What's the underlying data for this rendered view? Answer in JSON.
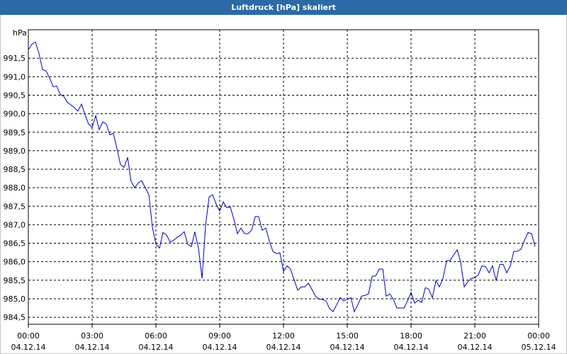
{
  "chart_data": {
    "type": "line",
    "title": "Luftdruck [hPa] skaliert",
    "y_label": "hPa",
    "color": "#0000b8",
    "grid": true,
    "xlim": [
      0,
      24
    ],
    "xticks": [
      {
        "value": 0,
        "label": "00:00",
        "date": "04.12.14"
      },
      {
        "value": 3,
        "label": "03:00",
        "date": "04.12.14"
      },
      {
        "value": 6,
        "label": "06:00",
        "date": "04.12.14"
      },
      {
        "value": 9,
        "label": "09:00",
        "date": "04.12.14"
      },
      {
        "value": 12,
        "label": "12:00",
        "date": "04.12.14"
      },
      {
        "value": 15,
        "label": "15:00",
        "date": "04.12.14"
      },
      {
        "value": 18,
        "label": "18:00",
        "date": "04.12.14"
      },
      {
        "value": 21,
        "label": "21:00",
        "date": "04.12.14"
      },
      {
        "value": 24,
        "label": "00:00",
        "date": "05.12.14"
      }
    ],
    "ylim": [
      984.31,
      992.27
    ],
    "yticks": [
      {
        "value": 984.5,
        "label": "984,5"
      },
      {
        "value": 985,
        "label": "985,0"
      },
      {
        "value": 985.5,
        "label": "985,5"
      },
      {
        "value": 986,
        "label": "986,0"
      },
      {
        "value": 986.5,
        "label": "986,5"
      },
      {
        "value": 987,
        "label": "987,0"
      },
      {
        "value": 987.5,
        "label": "987,5"
      },
      {
        "value": 988,
        "label": "988,0"
      },
      {
        "value": 988.5,
        "label": "988,5"
      },
      {
        "value": 989,
        "label": "989,0"
      },
      {
        "value": 989.5,
        "label": "989,5"
      },
      {
        "value": 990,
        "label": "990,0"
      },
      {
        "value": 990.5,
        "label": "990,5"
      },
      {
        "value": 991,
        "label": "991,0"
      },
      {
        "value": 991.5,
        "label": "991,5"
      }
    ],
    "x": [
      0,
      0.17,
      0.33,
      0.5,
      0.67,
      0.83,
      1,
      1.17,
      1.33,
      1.5,
      1.67,
      1.83,
      2,
      2.17,
      2.33,
      2.5,
      2.67,
      2.83,
      3,
      3.17,
      3.33,
      3.5,
      3.67,
      3.83,
      4,
      4.17,
      4.33,
      4.5,
      4.67,
      4.83,
      5,
      5.17,
      5.33,
      5.5,
      5.67,
      5.83,
      6,
      6.17,
      6.33,
      6.5,
      6.67,
      6.83,
      7,
      7.17,
      7.33,
      7.5,
      7.67,
      7.83,
      8,
      8.17,
      8.33,
      8.5,
      8.67,
      8.83,
      9,
      9.17,
      9.33,
      9.5,
      9.67,
      9.83,
      10,
      10.17,
      10.33,
      10.5,
      10.67,
      10.83,
      11,
      11.17,
      11.33,
      11.5,
      11.67,
      11.83,
      12,
      12.17,
      12.33,
      12.5,
      12.67,
      12.83,
      13,
      13.17,
      13.33,
      13.5,
      13.67,
      13.83,
      14,
      14.17,
      14.33,
      14.5,
      14.67,
      14.83,
      15,
      15.17,
      15.33,
      15.5,
      15.67,
      15.83,
      16,
      16.17,
      16.33,
      16.5,
      16.67,
      16.83,
      17,
      17.17,
      17.33,
      17.5,
      17.67,
      17.83,
      18,
      18.17,
      18.33,
      18.5,
      18.67,
      18.83,
      19,
      19.17,
      19.33,
      19.5,
      19.67,
      19.83,
      20,
      20.17,
      20.33,
      20.5,
      20.67,
      20.83,
      21,
      21.17,
      21.33,
      21.5,
      21.67,
      21.83,
      22,
      22.17,
      22.33,
      22.5,
      22.67,
      22.83,
      23,
      23.17,
      23.33,
      23.5,
      23.67,
      23.83
    ],
    "values": [
      991.73,
      991.88,
      991.94,
      991.63,
      991.19,
      991.16,
      990.96,
      990.73,
      990.75,
      990.52,
      990.47,
      990.31,
      990.24,
      990.16,
      990.07,
      990.26,
      989.97,
      989.72,
      989.63,
      989.95,
      989.57,
      989.78,
      989.72,
      989.43,
      989.47,
      989.05,
      988.63,
      988.55,
      988.82,
      988.17,
      988.0,
      988.13,
      988.19,
      988.0,
      987.81,
      986.95,
      986.47,
      986.37,
      986.79,
      986.72,
      986.53,
      986.58,
      986.66,
      986.72,
      986.81,
      986.47,
      986.41,
      986.81,
      986.37,
      985.55,
      986.95,
      987.75,
      987.81,
      987.56,
      987.37,
      987.62,
      987.46,
      987.48,
      987.14,
      986.76,
      986.91,
      986.76,
      986.76,
      986.85,
      987.22,
      987.22,
      986.85,
      986.91,
      986.57,
      986.28,
      986.22,
      986.24,
      985.74,
      985.89,
      985.8,
      985.51,
      985.23,
      985.32,
      985.32,
      985.42,
      985.26,
      985.07,
      984.99,
      984.98,
      984.94,
      984.73,
      984.65,
      984.84,
      985.03,
      984.94,
      984.98,
      985.03,
      984.65,
      984.84,
      985.07,
      985.09,
      985.13,
      985.61,
      985.61,
      985.8,
      985.8,
      985.07,
      985.13,
      984.98,
      984.75,
      984.75,
      984.75,
      984.94,
      985.17,
      984.88,
      984.96,
      984.9,
      985.3,
      985.26,
      985.03,
      985.49,
      985.32,
      985.55,
      986.03,
      986.03,
      986.18,
      986.32,
      986.0,
      985.32,
      985.46,
      985.55,
      985.57,
      985.65,
      985.89,
      985.87,
      985.7,
      985.89,
      985.49,
      985.93,
      985.93,
      985.7,
      985.89,
      986.28,
      986.28,
      986.34,
      986.57,
      986.79,
      986.76,
      986.41
    ]
  }
}
